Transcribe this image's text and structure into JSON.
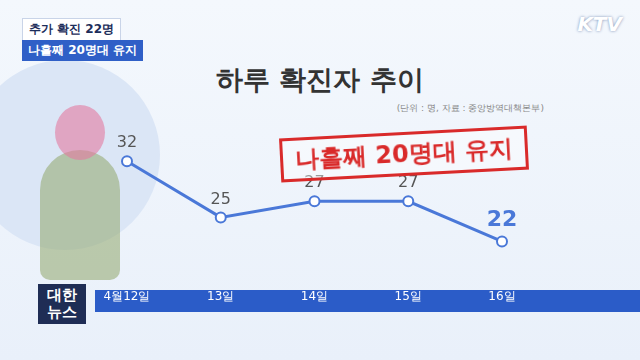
{
  "captions": [
    "추가 확진 22명",
    "나흘째 20명대 유지"
  ],
  "logo": "KTV",
  "program": "대한뉴스",
  "chart_data": {
    "type": "line",
    "title": "하루 확진자 추이",
    "subtitle": "(단위 : 명, 자료 : 중앙방역대책본부)",
    "annotations": [
      "나흘째 20명대 유지"
    ],
    "categories": [
      "4월12일",
      "13일",
      "14일",
      "15일",
      "16일"
    ],
    "values": [
      32,
      25,
      27,
      27,
      22
    ],
    "color": "#4a78d8",
    "ylim": [
      17,
      40
    ],
    "grid": false,
    "data_labels": true,
    "tick_labels": "x",
    "marker": "circle",
    "line_style": "solid"
  }
}
